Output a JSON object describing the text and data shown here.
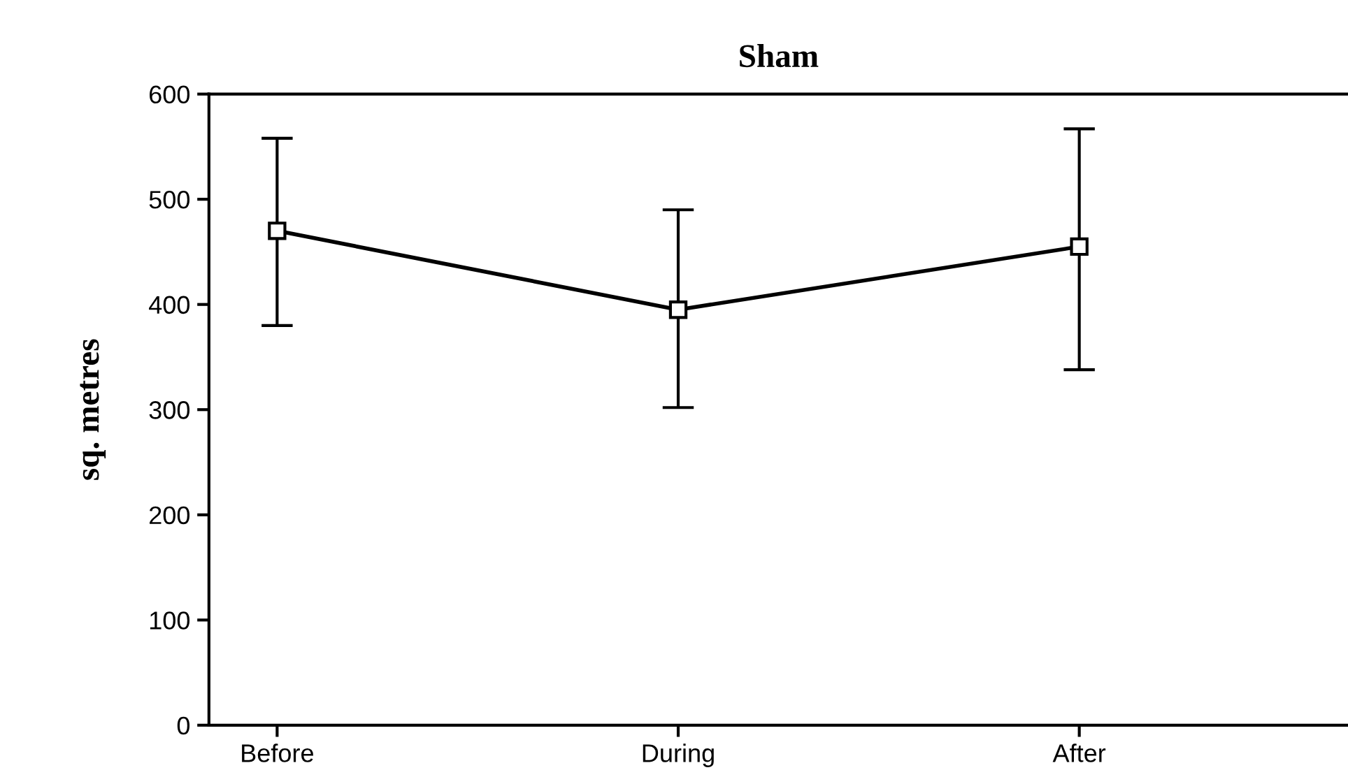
{
  "chart_data": {
    "type": "line",
    "title": "Sham",
    "ylabel": "sq. metres",
    "categories": [
      "Before",
      "During",
      "After"
    ],
    "series": [
      {
        "color": "#000000",
        "values": [
          470,
          395,
          455
        ],
        "errors": [
          [
            380,
            558
          ],
          [
            302,
            490
          ],
          [
            338,
            567
          ]
        ]
      }
    ],
    "ylim": [
      0,
      600
    ],
    "yticks": [
      0,
      100,
      200,
      300,
      400,
      500,
      600
    ],
    "marker": "square",
    "line_style": "solid",
    "grid": false,
    "legend": false
  }
}
